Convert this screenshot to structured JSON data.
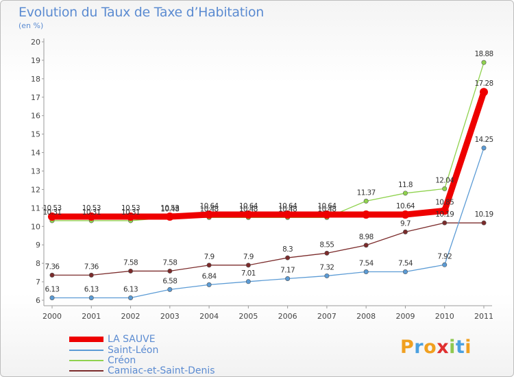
{
  "title": "Evolution du Taux de Taxe d’Habitation",
  "unit": "(en %)",
  "logo": "Proxiti",
  "chart_data": {
    "type": "line",
    "x": [
      "2000",
      "2001",
      "2002",
      "2003",
      "2004",
      "2005",
      "2006",
      "2007",
      "2008",
      "2009",
      "2010",
      "2011"
    ],
    "ylim": [
      6,
      20
    ],
    "yticks": [
      6,
      7,
      8,
      9,
      10,
      11,
      12,
      13,
      14,
      15,
      16,
      17,
      18,
      19,
      20
    ],
    "grid": false,
    "legend_position": "bottom-left",
    "series": [
      {
        "name": "LA SAUVE",
        "color": "#ee0000",
        "values": [
          10.53,
          10.53,
          10.53,
          10.53,
          10.64,
          10.64,
          10.64,
          10.64,
          10.64,
          10.64,
          10.85,
          17.28
        ],
        "labels": [
          "10.53",
          "10.53",
          "10.53",
          "10.53",
          "10.64",
          "10.64",
          "10.64",
          "10.64",
          "",
          "10.64",
          "10.85",
          "17.28"
        ]
      },
      {
        "name": "Saint-Léon",
        "color": "#5b9bd5",
        "values": [
          6.13,
          6.13,
          6.13,
          6.58,
          6.84,
          7.01,
          7.17,
          7.32,
          7.54,
          7.54,
          7.92,
          14.25
        ],
        "labels": [
          "6.13",
          "6.13",
          "6.13",
          "6.58",
          "6.84",
          "7.01",
          "7.17",
          "7.32",
          "7.54",
          "7.54",
          "7.92",
          "14.25"
        ]
      },
      {
        "name": "Créon",
        "color": "#8fd24e",
        "values": [
          10.31,
          10.31,
          10.31,
          10.48,
          10.48,
          10.48,
          10.48,
          10.48,
          11.37,
          11.8,
          12.04,
          18.88
        ],
        "labels": [
          "10.31",
          "10.31",
          "10.31",
          "10.48",
          "10.48",
          "10.48",
          "10.48",
          "10.48",
          "11.37",
          "11.8",
          "12.04",
          "18.88"
        ]
      },
      {
        "name": "Camiac-et-Saint-Denis",
        "color": "#7b2b2b",
        "values": [
          7.36,
          7.36,
          7.58,
          7.58,
          7.9,
          7.9,
          8.3,
          8.55,
          8.98,
          9.7,
          10.19,
          10.19
        ],
        "labels": [
          "7.36",
          "7.36",
          "7.58",
          "7.58",
          "7.9",
          "7.9",
          "8.3",
          "8.55",
          "8.98",
          "9.7",
          "10.19",
          "10.19"
        ]
      }
    ]
  }
}
